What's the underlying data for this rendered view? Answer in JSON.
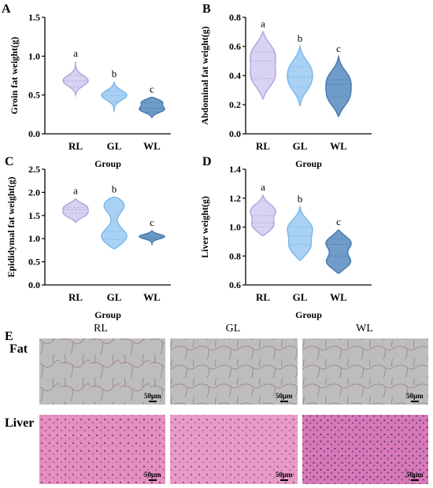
{
  "chart_data": [
    {
      "panel": "A",
      "type": "violin",
      "ylabel": "Groin fat weight(g)",
      "xlabel": "Group",
      "ylim": [
        0,
        1.5
      ],
      "yticks": [
        "0.0",
        "0.5",
        "1.0",
        "1.5"
      ],
      "categories": [
        "RL",
        "GL",
        "WL"
      ],
      "series": [
        {
          "category": "RL",
          "min": 0.5,
          "max": 0.93,
          "median": 0.68,
          "q1": 0.6,
          "q3": 0.75,
          "modes": [
            0.68
          ],
          "sig": "a"
        },
        {
          "category": "GL",
          "min": 0.28,
          "max": 0.67,
          "median": 0.49,
          "q1": 0.41,
          "q3": 0.55,
          "modes": [
            0.5
          ],
          "sig": "b"
        },
        {
          "category": "WL",
          "min": 0.21,
          "max": 0.47,
          "median": 0.33,
          "q1": 0.28,
          "q3": 0.4,
          "modes": [
            0.31,
            0.42
          ],
          "sig": "c"
        }
      ]
    },
    {
      "panel": "B",
      "type": "violin",
      "ylabel": "Abdominal fat weight(g)",
      "xlabel": "Group",
      "ylim": [
        0,
        0.8
      ],
      "yticks": [
        "0.0",
        "0.2",
        "0.4",
        "0.6",
        "0.8"
      ],
      "categories": [
        "RL",
        "GL",
        "WL"
      ],
      "series": [
        {
          "category": "RL",
          "min": 0.24,
          "max": 0.7,
          "median": 0.5,
          "q1": 0.38,
          "q3": 0.56,
          "modes": [
            0.38,
            0.56
          ],
          "sig": "a"
        },
        {
          "category": "GL",
          "min": 0.19,
          "max": 0.6,
          "median": 0.39,
          "q1": 0.32,
          "q3": 0.46,
          "modes": [
            0.34,
            0.46
          ],
          "sig": "b"
        },
        {
          "category": "WL",
          "min": 0.12,
          "max": 0.53,
          "median": 0.34,
          "q1": 0.25,
          "q3": 0.37,
          "modes": [
            0.24,
            0.38
          ],
          "sig": "c"
        }
      ]
    },
    {
      "panel": "C",
      "type": "violin",
      "ylabel": "Epididymal fat weight(g)",
      "xlabel": "Group",
      "ylim": [
        0,
        2.5
      ],
      "yticks": [
        "0.0",
        "0.5",
        "1.0",
        "1.5",
        "2.0",
        "2.5"
      ],
      "categories": [
        "RL",
        "GL",
        "WL"
      ],
      "series": [
        {
          "category": "RL",
          "min": 1.35,
          "max": 1.86,
          "median": 1.63,
          "q1": 1.55,
          "q3": 1.68,
          "modes": [
            1.52,
            1.7
          ],
          "sig": "a"
        },
        {
          "category": "GL",
          "min": 0.78,
          "max": 1.9,
          "median": 1.15,
          "q1": 0.98,
          "q3": 1.35,
          "modes": [
            1.0,
            1.8
          ],
          "sig": "b"
        },
        {
          "category": "WL",
          "min": 0.86,
          "max": 1.17,
          "median": 1.03,
          "q1": 1.0,
          "q3": 1.08,
          "modes": [
            1.05
          ],
          "sig": "c"
        }
      ]
    },
    {
      "panel": "D",
      "type": "violin",
      "ylabel": "Liver weight(g)",
      "xlabel": "Group",
      "ylim": [
        0.6,
        1.4
      ],
      "yticks": [
        "0.6",
        "0.8",
        "1.0",
        "1.2",
        "1.4"
      ],
      "categories": [
        "RL",
        "GL",
        "WL"
      ],
      "series": [
        {
          "category": "RL",
          "min": 0.94,
          "max": 1.22,
          "median": 1.03,
          "q1": 1.0,
          "q3": 1.08,
          "modes": [
            1.0,
            1.12
          ],
          "sig": "a"
        },
        {
          "category": "GL",
          "min": 0.77,
          "max": 1.14,
          "median": 0.94,
          "q1": 0.88,
          "q3": 1.0,
          "modes": [
            0.85,
            1.0
          ],
          "sig": "b"
        },
        {
          "category": "WL",
          "min": 0.68,
          "max": 0.98,
          "median": 0.88,
          "q1": 0.8,
          "q3": 0.92,
          "modes": [
            0.75,
            0.9
          ],
          "sig": "c"
        }
      ]
    }
  ],
  "colors": {
    "RL_fill": "#d8d3f2",
    "RL_edge": "#b3acdf",
    "GL_fill": "#a9d1f4",
    "GL_edge": "#7fbcec",
    "WL_fill": "#6f9cc8",
    "WL_edge": "#4e7fb2",
    "fat_bg": "#bdbdbd",
    "liver_bg": "#e58fbf"
  },
  "histology": {
    "panel": "E",
    "columns": [
      "RL",
      "GL",
      "WL"
    ],
    "rows": [
      "Fat",
      "Liver"
    ],
    "scale_bar": "50μm"
  }
}
